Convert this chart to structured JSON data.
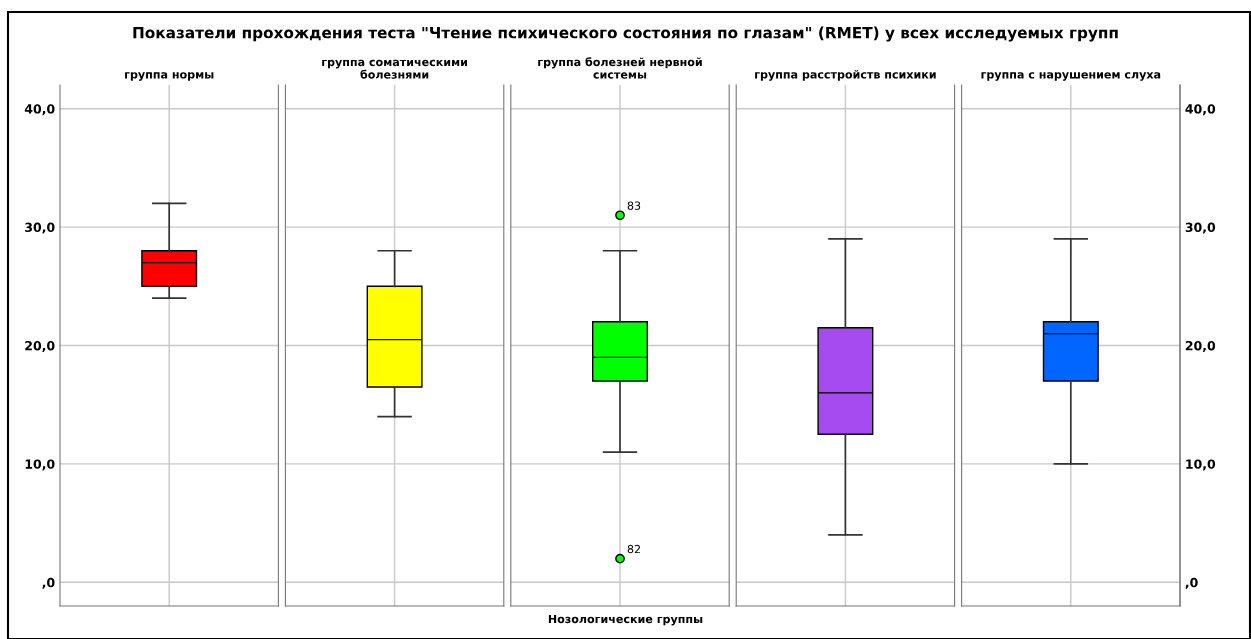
{
  "chart_data": {
    "type": "box",
    "title": "Показатели прохождения теста \"Чтение психического состояния по глазам\" (RMET) у всех исследуемых групп",
    "xlabel": "Нозологические группы",
    "categories": [
      "группа нормы",
      "группа соматическими\nболезнями",
      "группа болезней нервной\nсистемы",
      "группа расстройств психики",
      "группа с нарушением слуха"
    ],
    "colors": [
      "#ff0000",
      "#ffff00",
      "#00ff00",
      "#a64bf0",
      "#0066ff"
    ],
    "boxes": [
      {
        "low": 24,
        "q1": 25,
        "median": 27,
        "q3": 28,
        "high": 32
      },
      {
        "low": 14,
        "q1": 16.5,
        "median": 20.5,
        "q3": 25,
        "high": 28
      },
      {
        "low": 11,
        "q1": 17,
        "median": 19,
        "q3": 22,
        "high": 28,
        "outliers": [
          31,
          2
        ]
      },
      {
        "low": 4,
        "q1": 12.5,
        "median": 16,
        "q3": 21.5,
        "high": 29
      },
      {
        "low": 10,
        "q1": 17,
        "median": 21,
        "q3": 22,
        "high": 29
      }
    ],
    "annotations": [
      "83",
      "82"
    ],
    "ylim": [
      -2,
      42
    ],
    "yticks": [
      {
        "value": 0,
        "label": ",0"
      },
      {
        "value": 10,
        "label": "10,0"
      },
      {
        "value": 20,
        "label": "20,0"
      },
      {
        "value": 30,
        "label": "30,0"
      },
      {
        "value": 40,
        "label": "40,0"
      }
    ],
    "y2lim": [
      -2,
      42
    ],
    "y2ticks": [
      {
        "value": 0,
        "label": ",0"
      },
      {
        "value": 10,
        "label": "10,0"
      },
      {
        "value": 20,
        "label": "20,0"
      },
      {
        "value": 30,
        "label": "30,0"
      },
      {
        "value": 40,
        "label": "40,0"
      }
    ],
    "grid": true,
    "marker": "circle"
  }
}
